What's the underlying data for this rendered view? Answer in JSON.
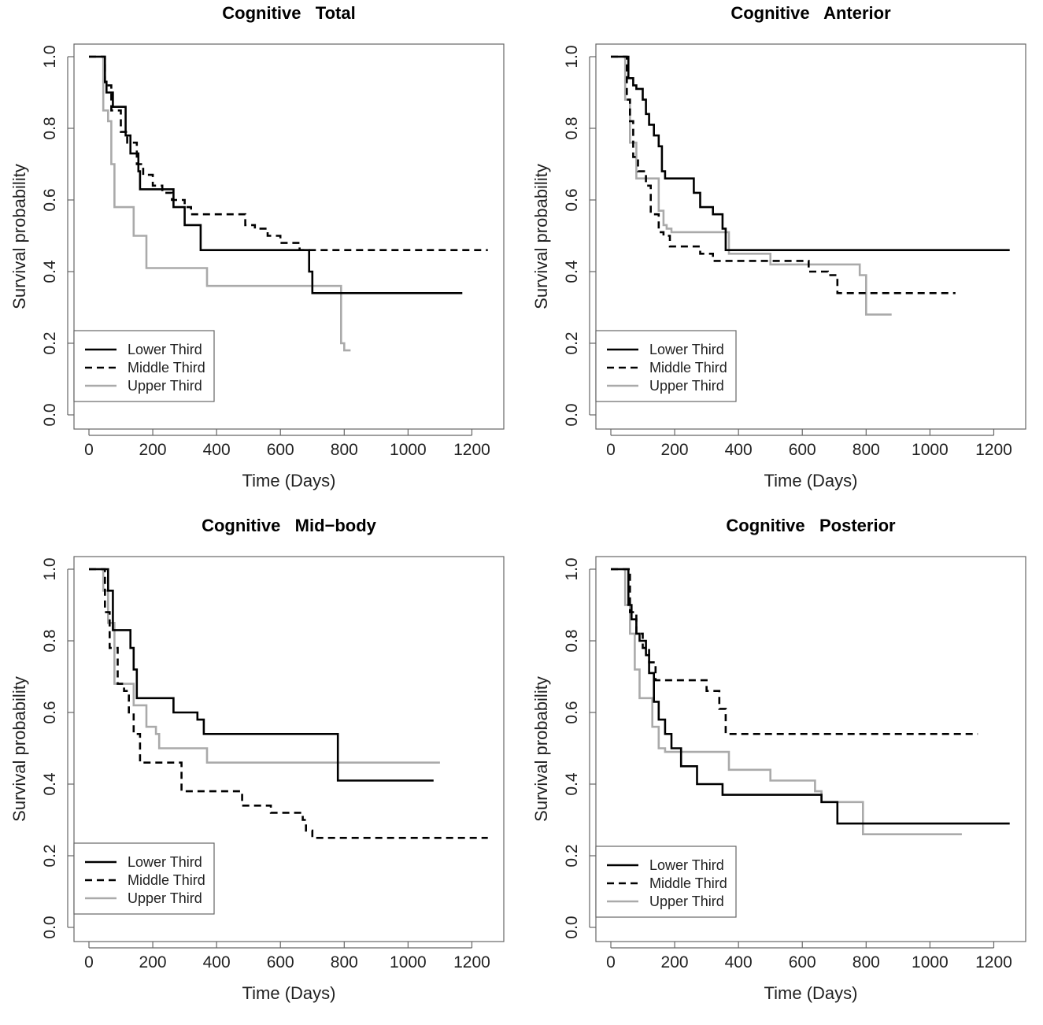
{
  "chart_data": [
    {
      "type": "line",
      "title": "Cognitive   Total",
      "xlabel": "Time (Days)",
      "ylabel": "Survival probability",
      "xlim": [
        0,
        1300
      ],
      "ylim": [
        0,
        1
      ],
      "xticks": [
        "0",
        "200",
        "400",
        "600",
        "800",
        "1000",
        "1200"
      ],
      "yticks": [
        "0.0",
        "0.2",
        "0.4",
        "0.6",
        "0.8",
        "1.0"
      ],
      "legend": "bottom-left",
      "series": [
        {
          "name": "Lower Third",
          "style": "solid",
          "color": "#000000",
          "x": [
            0,
            40,
            50,
            55,
            75,
            100,
            115,
            130,
            155,
            160,
            180,
            240,
            265,
            300,
            350,
            410,
            470,
            510,
            560,
            660,
            690,
            700,
            920,
            1170
          ],
          "y": [
            1.0,
            1.0,
            0.93,
            0.9,
            0.86,
            0.86,
            0.78,
            0.73,
            0.68,
            0.63,
            0.63,
            0.63,
            0.58,
            0.53,
            0.46,
            0.46,
            0.46,
            0.46,
            0.46,
            0.46,
            0.4,
            0.34,
            0.34,
            0.34
          ]
        },
        {
          "name": "Middle Third",
          "style": "dashed",
          "color": "#000000",
          "x": [
            0,
            40,
            50,
            70,
            100,
            120,
            150,
            170,
            200,
            230,
            260,
            300,
            320,
            380,
            470,
            490,
            520,
            560,
            600,
            660,
            700,
            800,
            1250
          ],
          "y": [
            1.0,
            1.0,
            0.92,
            0.85,
            0.79,
            0.76,
            0.7,
            0.67,
            0.64,
            0.62,
            0.6,
            0.58,
            0.56,
            0.56,
            0.56,
            0.53,
            0.52,
            0.5,
            0.48,
            0.46,
            0.46,
            0.46,
            0.46
          ]
        },
        {
          "name": "Upper Third",
          "style": "solid",
          "color": "#aaaaaa",
          "x": [
            0,
            35,
            45,
            60,
            70,
            80,
            130,
            140,
            160,
            180,
            360,
            370,
            450,
            480,
            650,
            780,
            790,
            800,
            820
          ],
          "y": [
            1.0,
            1.0,
            0.85,
            0.82,
            0.7,
            0.58,
            0.58,
            0.5,
            0.5,
            0.41,
            0.41,
            0.36,
            0.36,
            0.36,
            0.36,
            0.36,
            0.2,
            0.18,
            0.18
          ]
        }
      ]
    },
    {
      "type": "line",
      "title": "Cognitive   Anterior",
      "xlabel": "Time (Days)",
      "ylabel": "Survival probability",
      "xlim": [
        0,
        1300
      ],
      "ylim": [
        0,
        1
      ],
      "xticks": [
        "0",
        "200",
        "400",
        "600",
        "800",
        "1000",
        "1200"
      ],
      "yticks": [
        "0.0",
        "0.2",
        "0.4",
        "0.6",
        "0.8",
        "1.0"
      ],
      "legend": "bottom-left",
      "series": [
        {
          "name": "Lower Third",
          "style": "solid",
          "color": "#000000",
          "x": [
            0,
            40,
            55,
            70,
            80,
            100,
            110,
            120,
            135,
            150,
            160,
            170,
            250,
            260,
            280,
            320,
            350,
            360,
            380,
            500,
            700,
            1250
          ],
          "y": [
            1.0,
            1.0,
            0.94,
            0.92,
            0.91,
            0.88,
            0.84,
            0.81,
            0.78,
            0.75,
            0.68,
            0.66,
            0.66,
            0.62,
            0.58,
            0.56,
            0.52,
            0.46,
            0.46,
            0.46,
            0.46,
            0.46
          ]
        },
        {
          "name": "Middle Third",
          "style": "dashed",
          "color": "#000000",
          "x": [
            0,
            40,
            50,
            60,
            70,
            85,
            110,
            125,
            150,
            165,
            185,
            270,
            280,
            320,
            380,
            620,
            680,
            710,
            780,
            1080
          ],
          "y": [
            1.0,
            1.0,
            0.88,
            0.82,
            0.72,
            0.68,
            0.64,
            0.56,
            0.51,
            0.5,
            0.47,
            0.47,
            0.45,
            0.43,
            0.43,
            0.4,
            0.39,
            0.34,
            0.34,
            0.34
          ]
        },
        {
          "name": "Upper Third",
          "style": "solid",
          "color": "#aaaaaa",
          "x": [
            0,
            35,
            45,
            60,
            75,
            80,
            120,
            150,
            165,
            175,
            190,
            360,
            370,
            490,
            500,
            640,
            700,
            770,
            780,
            800,
            880
          ],
          "y": [
            1.0,
            1.0,
            0.88,
            0.76,
            0.76,
            0.66,
            0.66,
            0.57,
            0.53,
            0.52,
            0.51,
            0.51,
            0.45,
            0.45,
            0.42,
            0.42,
            0.42,
            0.42,
            0.39,
            0.28,
            0.28
          ]
        }
      ]
    },
    {
      "type": "line",
      "title": "Cognitive   Mid−body",
      "xlabel": "Time (Days)",
      "ylabel": "Survival probability",
      "xlim": [
        0,
        1300
      ],
      "ylim": [
        0,
        1
      ],
      "xticks": [
        "0",
        "200",
        "400",
        "600",
        "800",
        "1000",
        "1200"
      ],
      "yticks": [
        "0.0",
        "0.2",
        "0.4",
        "0.6",
        "0.8",
        "1.0"
      ],
      "legend": "bottom-left",
      "series": [
        {
          "name": "Lower Third",
          "style": "solid",
          "color": "#000000",
          "x": [
            0,
            40,
            60,
            75,
            125,
            130,
            140,
            150,
            165,
            265,
            300,
            340,
            360,
            760,
            780,
            1080
          ],
          "y": [
            1.0,
            1.0,
            0.94,
            0.83,
            0.83,
            0.78,
            0.72,
            0.64,
            0.64,
            0.6,
            0.6,
            0.58,
            0.54,
            0.54,
            0.41,
            0.41
          ]
        },
        {
          "name": "Middle Third",
          "style": "dashed",
          "color": "#000000",
          "x": [
            0,
            40,
            50,
            65,
            90,
            110,
            125,
            140,
            160,
            270,
            290,
            390,
            470,
            480,
            540,
            570,
            670,
            680,
            700,
            1250
          ],
          "y": [
            1.0,
            1.0,
            0.88,
            0.78,
            0.68,
            0.66,
            0.6,
            0.54,
            0.46,
            0.46,
            0.38,
            0.38,
            0.38,
            0.34,
            0.34,
            0.32,
            0.3,
            0.27,
            0.25,
            0.25
          ]
        },
        {
          "name": "Upper Third",
          "style": "solid",
          "color": "#aaaaaa",
          "x": [
            0,
            35,
            45,
            60,
            80,
            120,
            140,
            150,
            180,
            210,
            220,
            350,
            370,
            1100
          ],
          "y": [
            1.0,
            1.0,
            0.94,
            0.85,
            0.68,
            0.68,
            0.62,
            0.62,
            0.56,
            0.54,
            0.5,
            0.5,
            0.46,
            0.46
          ]
        }
      ]
    },
    {
      "type": "line",
      "title": "Cognitive   Posterior",
      "xlabel": "Time (Days)",
      "ylabel": "Survival probability",
      "xlim": [
        0,
        1300
      ],
      "ylim": [
        0,
        1
      ],
      "xticks": [
        "0",
        "200",
        "400",
        "600",
        "800",
        "1000",
        "1200"
      ],
      "yticks": [
        "0.0",
        "0.2",
        "0.4",
        "0.6",
        "0.8",
        "1.0"
      ],
      "legend": "bottom-left",
      "series": [
        {
          "name": "Lower Third",
          "style": "solid",
          "color": "#000000",
          "x": [
            0,
            40,
            55,
            65,
            80,
            90,
            110,
            120,
            135,
            150,
            170,
            190,
            220,
            270,
            350,
            600,
            660,
            710,
            1250
          ],
          "y": [
            1.0,
            1.0,
            0.9,
            0.86,
            0.82,
            0.8,
            0.76,
            0.71,
            0.63,
            0.58,
            0.54,
            0.5,
            0.45,
            0.4,
            0.37,
            0.37,
            0.35,
            0.29,
            0.29
          ]
        },
        {
          "name": "Middle Third",
          "style": "dashed",
          "color": "#000000",
          "x": [
            0,
            50,
            60,
            80,
            100,
            120,
            140,
            160,
            270,
            300,
            340,
            360,
            1150
          ],
          "y": [
            1.0,
            1.0,
            0.88,
            0.82,
            0.78,
            0.74,
            0.69,
            0.69,
            0.69,
            0.66,
            0.61,
            0.54,
            0.54
          ]
        },
        {
          "name": "Upper Third",
          "style": "solid",
          "color": "#aaaaaa",
          "x": [
            0,
            35,
            45,
            60,
            75,
            90,
            120,
            130,
            150,
            170,
            220,
            360,
            370,
            490,
            500,
            620,
            640,
            660,
            700,
            770,
            790,
            1100
          ],
          "y": [
            1.0,
            1.0,
            0.9,
            0.82,
            0.72,
            0.64,
            0.64,
            0.56,
            0.5,
            0.49,
            0.49,
            0.49,
            0.44,
            0.44,
            0.41,
            0.41,
            0.38,
            0.35,
            0.35,
            0.35,
            0.26,
            0.26
          ]
        }
      ]
    }
  ]
}
